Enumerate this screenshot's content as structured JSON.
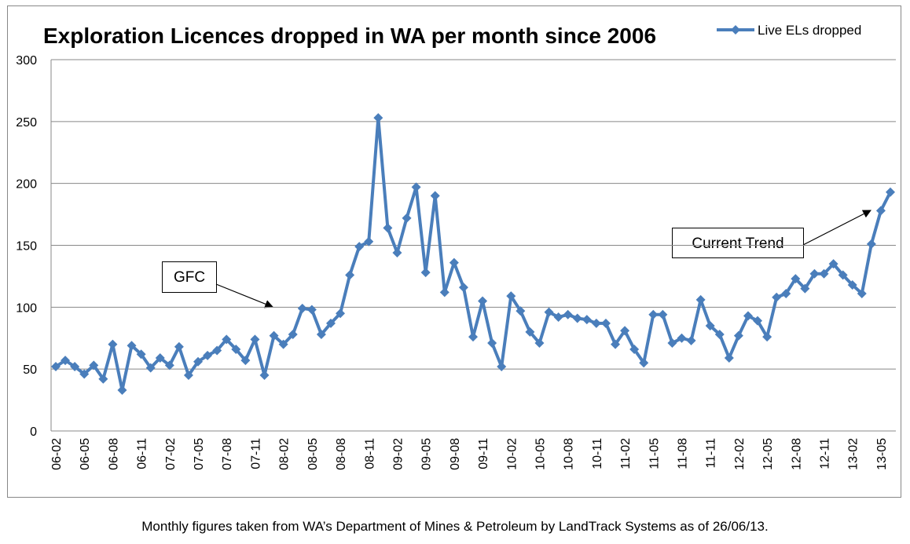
{
  "chart_data": {
    "type": "line",
    "title": "Exploration Licences dropped in WA per month since 2006",
    "categories": [
      "06-02",
      null,
      null,
      "06-05",
      null,
      null,
      "06-08",
      null,
      null,
      "06-11",
      null,
      null,
      "07-02",
      null,
      null,
      "07-05",
      null,
      null,
      "07-08",
      null,
      null,
      "07-11",
      null,
      null,
      "08-02",
      null,
      null,
      "08-05",
      null,
      null,
      "08-08",
      null,
      null,
      "08-11",
      null,
      null,
      "09-02",
      null,
      null,
      "09-05",
      null,
      null,
      "09-08",
      null,
      null,
      "09-11",
      null,
      null,
      "10-02",
      null,
      null,
      "10-05",
      null,
      null,
      "10-08",
      null,
      null,
      "10-11",
      null,
      null,
      "11-02",
      null,
      null,
      "11-05",
      null,
      null,
      "11-08",
      null,
      null,
      "11-11",
      null,
      null,
      "12-02",
      null,
      null,
      "12-05",
      null,
      null,
      "12-08",
      null,
      null,
      "12-11",
      null,
      null,
      "13-02",
      null,
      null,
      "13-05",
      null
    ],
    "series": [
      {
        "name": "Live ELs dropped",
        "color": "#4a7ebb",
        "values": [
          52,
          57,
          52,
          46,
          53,
          42,
          70,
          33,
          69,
          62,
          51,
          59,
          53,
          68,
          45,
          56,
          61,
          65,
          74,
          66,
          57,
          74,
          45,
          77,
          70,
          78,
          99,
          98,
          78,
          87,
          95,
          126,
          149,
          153,
          253,
          164,
          144,
          172,
          197,
          128,
          190,
          112,
          136,
          116,
          76,
          105,
          71,
          52,
          109,
          97,
          80,
          71,
          96,
          92,
          94,
          91,
          90,
          87,
          87,
          70,
          81,
          66,
          55,
          94,
          94,
          71,
          75,
          73,
          106,
          85,
          78,
          59,
          77,
          93,
          89,
          76,
          108,
          111,
          123,
          115,
          127,
          127,
          135,
          126,
          118,
          111,
          151,
          178,
          193
        ]
      }
    ],
    "ylim": [
      0,
      300
    ],
    "yticks": [
      0,
      50,
      100,
      150,
      200,
      250,
      300
    ],
    "grid": true,
    "legend": "top-right",
    "annotations": [
      "GFC",
      "Current Trend"
    ],
    "footnote": "Monthly figures taken from WA’s Department of Mines & Petroleum by LandTrack Systems as of 26/06/13."
  }
}
